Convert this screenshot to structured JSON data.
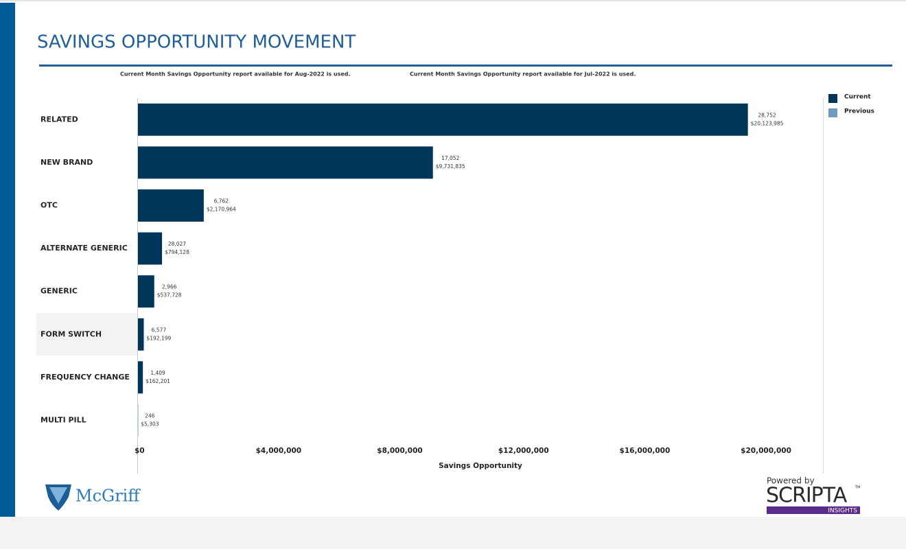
{
  "page": {
    "brand": "McGriff",
    "powered_by": "Powered by",
    "scripta": "SCRIPTA",
    "trademark": "TM",
    "insights": "INSIGHTS"
  },
  "chart_data": {
    "type": "hbar",
    "title": "SAVINGS OPPORTUNITY MOVEMENT",
    "notes": [
      "Current Month Savings Opportunity report available for Aug-2022 is used.",
      "Current Month Savings Opportunity report available for Jul-2022 is used."
    ],
    "x_label": "Savings Opportunity",
    "categories": [
      "RELATED",
      "NEW BRAND",
      "OTC",
      "ALTERNATE GENERIC",
      "GENERIC",
      "FORM SWITCH",
      "FREQUENCY CHANGE",
      "MULTI PILL"
    ],
    "values": [
      20123985,
      9731835,
      2170964,
      794128,
      537728,
      192199,
      162201,
      5303
    ],
    "value_labels": [
      "$20,123,985",
      "$9,731,835",
      "$2,170,964",
      "$794,128",
      "$537,728",
      "$192,199",
      "$162,201",
      "$5,303"
    ],
    "counts": [
      28752,
      17052,
      6762,
      28027,
      2966,
      6577,
      1409,
      246
    ],
    "count_labels": [
      "28,752",
      "17,052",
      "6,762",
      "28,027",
      "2,966",
      "6,577",
      "1,409",
      "246"
    ],
    "color": "#00365a",
    "legend": [
      {
        "name": "Current",
        "color": "#00365a"
      },
      {
        "name": "Previous",
        "color": "#6f9bc0"
      }
    ],
    "xlim": [
      0,
      22600000
    ],
    "xticks": [
      {
        "value": 0,
        "label": "$0"
      },
      {
        "value": 4000000,
        "label": "$4,000,000"
      },
      {
        "value": 8000000,
        "label": "$8,000,000"
      },
      {
        "value": 12000000,
        "label": "$12,000,000"
      },
      {
        "value": 16000000,
        "label": "$16,000,000"
      },
      {
        "value": 20000000,
        "label": "$20,000,000"
      }
    ]
  }
}
